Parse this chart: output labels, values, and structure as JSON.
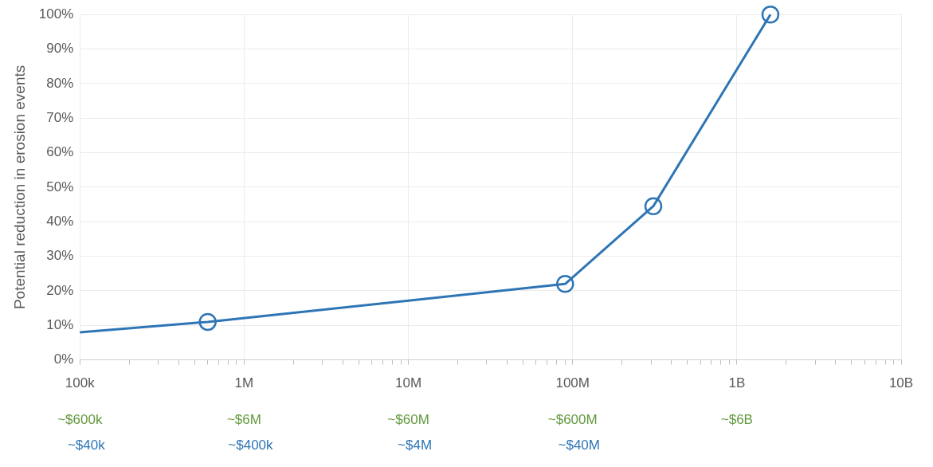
{
  "chart_data": {
    "type": "line",
    "ylabel": "Potential reduction in erosion events",
    "x": [
      100000,
      600000,
      90000000,
      310000000,
      1600000000
    ],
    "series": [
      {
        "color": "#2e75b6",
        "values": [
          8,
          11,
          22,
          44.5,
          100
        ]
      }
    ],
    "log": "x",
    "marker": "circle",
    "line_style": "solid",
    "grid": true,
    "legend": false,
    "xlim": [
      100000,
      10000000000
    ],
    "xticks": [
      {
        "value": 100000,
        "label": "100k"
      },
      {
        "value": 200000,
        "label": null
      },
      {
        "value": 300000,
        "label": null
      },
      {
        "value": 400000,
        "label": null
      },
      {
        "value": 500000,
        "label": null
      },
      {
        "value": 600000,
        "label": null
      },
      {
        "value": 700000,
        "label": null
      },
      {
        "value": 800000,
        "label": null
      },
      {
        "value": 900000,
        "label": null
      },
      {
        "value": 1000000,
        "label": "1M"
      },
      {
        "value": 2000000,
        "label": null
      },
      {
        "value": 3000000,
        "label": null
      },
      {
        "value": 4000000,
        "label": null
      },
      {
        "value": 5000000,
        "label": null
      },
      {
        "value": 6000000,
        "label": null
      },
      {
        "value": 7000000,
        "label": null
      },
      {
        "value": 8000000,
        "label": null
      },
      {
        "value": 9000000,
        "label": null
      },
      {
        "value": 10000000,
        "label": "10M"
      },
      {
        "value": 20000000,
        "label": null
      },
      {
        "value": 30000000,
        "label": null
      },
      {
        "value": 40000000,
        "label": null
      },
      {
        "value": 50000000,
        "label": null
      },
      {
        "value": 60000000,
        "label": null
      },
      {
        "value": 70000000,
        "label": null
      },
      {
        "value": 80000000,
        "label": null
      },
      {
        "value": 90000000,
        "label": null
      },
      {
        "value": 100000000,
        "label": "100M"
      },
      {
        "value": 200000000,
        "label": null
      },
      {
        "value": 300000000,
        "label": null
      },
      {
        "value": 400000000,
        "label": null
      },
      {
        "value": 500000000,
        "label": null
      },
      {
        "value": 600000000,
        "label": null
      },
      {
        "value": 700000000,
        "label": null
      },
      {
        "value": 800000000,
        "label": null
      },
      {
        "value": 900000000,
        "label": null
      },
      {
        "value": 1000000000,
        "label": "1B"
      },
      {
        "value": 2000000000,
        "label": null
      },
      {
        "value": 3000000000,
        "label": null
      },
      {
        "value": 4000000000,
        "label": null
      },
      {
        "value": 5000000000,
        "label": null
      },
      {
        "value": 6000000000,
        "label": null
      },
      {
        "value": 7000000000,
        "label": null
      },
      {
        "value": 8000000000,
        "label": null
      },
      {
        "value": 9000000000,
        "label": null
      },
      {
        "value": 10000000000,
        "label": "10B"
      }
    ],
    "annotations": [
      "~$600k\n~$40k",
      "~$6M\n~$400k",
      "~$60M\n~$4M",
      "~$600M\n~$40M",
      "~$6B"
    ],
    "ylim": [
      0,
      100
    ],
    "yticks": [
      {
        "value": 0,
        "label": "0%"
      },
      {
        "value": 10,
        "label": "10%"
      },
      {
        "value": 20,
        "label": "20%"
      },
      {
        "value": 30,
        "label": "30%"
      },
      {
        "value": 40,
        "label": "40%"
      },
      {
        "value": 50,
        "label": "50%"
      },
      {
        "value": 60,
        "label": "60%"
      },
      {
        "value": 70,
        "label": "70%"
      },
      {
        "value": 80,
        "label": "80%"
      },
      {
        "value": 90,
        "label": "90%"
      },
      {
        "value": 100,
        "label": "100%"
      }
    ]
  }
}
